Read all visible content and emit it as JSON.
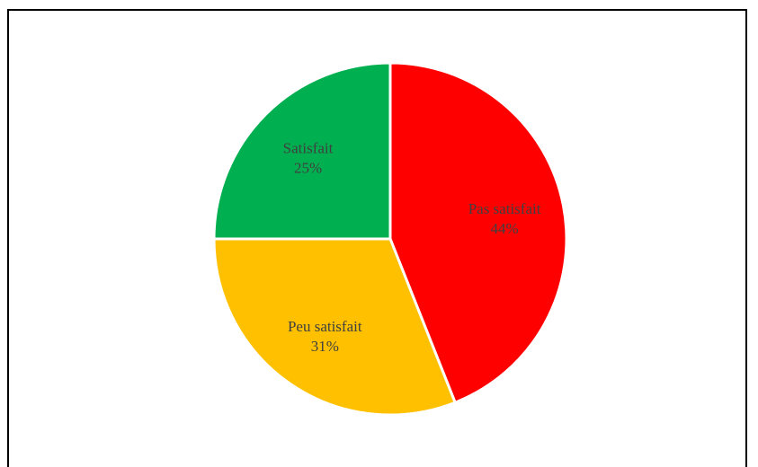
{
  "chart_data": {
    "type": "pie",
    "title": "",
    "slices": [
      {
        "label": "Pas satisfait",
        "value": 44,
        "value_label": "44%",
        "color": "#FF0000"
      },
      {
        "label": "Peu satisfait",
        "value": 31,
        "value_label": "31%",
        "color": "#FFC000"
      },
      {
        "label": "Satisfait",
        "value": 25,
        "value_label": "25%",
        "color": "#00B050"
      }
    ],
    "start_angle": "12 o'clock",
    "direction": "clockwise",
    "legend": "none"
  }
}
